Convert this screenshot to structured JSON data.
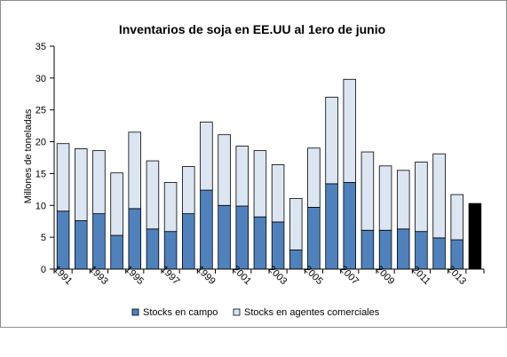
{
  "chart_data": {
    "type": "bar",
    "stacked": true,
    "title": "Inventarios de soja en EE.UU al 1ero de junio",
    "ylabel": "Millones de toneladas",
    "xlabel": "",
    "ylim": [
      0,
      35
    ],
    "yticks": [
      0,
      5,
      10,
      15,
      20,
      25,
      30,
      35
    ],
    "grid": false,
    "legend_position": "bottom",
    "categories": [
      "1991",
      "1992",
      "1993",
      "1994",
      "1995",
      "1996",
      "1997",
      "1998",
      "1999",
      "2000",
      "2001",
      "2002",
      "2003",
      "2004",
      "2005",
      "2006",
      "2007",
      "2008",
      "2009",
      "2010",
      "2011",
      "2012",
      "2013",
      "2014"
    ],
    "x_tick_labels": [
      "1991",
      "",
      "1993",
      "",
      "1995",
      "",
      "1997",
      "",
      "1999",
      "",
      "2001",
      "",
      "2003",
      "",
      "2005",
      "",
      "2007",
      "",
      "2009",
      "",
      "2011",
      "",
      "2013",
      ""
    ],
    "series": [
      {
        "name": "Stocks en campo",
        "color": "#4f81bd",
        "values": [
          9.1,
          7.6,
          8.7,
          5.3,
          9.5,
          6.3,
          5.9,
          8.7,
          12.4,
          10.0,
          9.9,
          8.2,
          7.4,
          3.0,
          9.7,
          13.4,
          13.6,
          6.1,
          6.1,
          6.3,
          5.9,
          4.9,
          4.6,
          null
        ]
      },
      {
        "name": "Stocks en agentes comerciales",
        "color": "#dce6f2",
        "values": [
          10.6,
          11.3,
          9.9,
          9.8,
          12.0,
          10.7,
          7.7,
          7.4,
          10.7,
          11.1,
          9.4,
          10.4,
          9.0,
          8.1,
          9.3,
          13.6,
          16.2,
          12.3,
          10.1,
          9.2,
          10.9,
          13.2,
          7.1,
          null
        ]
      }
    ],
    "highlight": {
      "category": "2014",
      "value": 10.3,
      "color": "#000000"
    }
  }
}
